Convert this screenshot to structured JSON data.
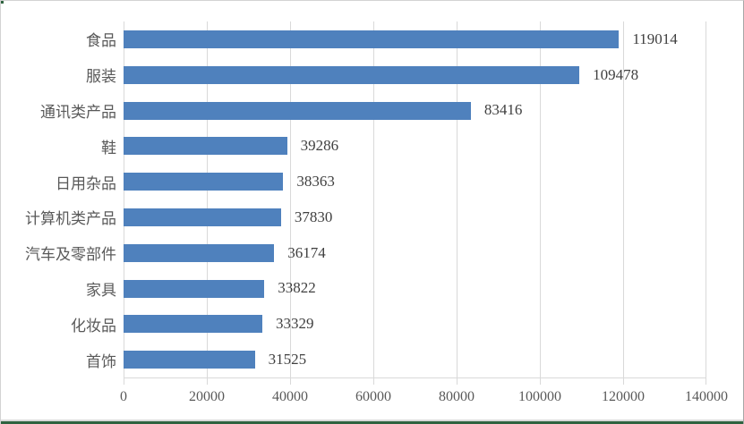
{
  "chart_data": {
    "type": "bar",
    "orientation": "horizontal",
    "title": "",
    "xlabel": "",
    "ylabel": "",
    "legend": "none",
    "grid": "vertical",
    "categories": [
      "食品",
      "服装",
      "通讯类产品",
      "鞋",
      "日用杂品",
      "计算机类产品",
      "汽车及零部件",
      "家具",
      "化妆品",
      "首饰"
    ],
    "values": [
      119014,
      109478,
      83416,
      39286,
      38363,
      37830,
      36174,
      33822,
      33329,
      31525
    ],
    "data_labels": [
      "119014",
      "109478",
      "83416",
      "39286",
      "38363",
      "37830",
      "36174",
      "33822",
      "33329",
      "31525"
    ],
    "xlim": [
      0,
      140000
    ],
    "x_ticks": [
      0,
      20000,
      40000,
      60000,
      80000,
      100000,
      120000,
      140000
    ],
    "x_tick_labels": [
      "0",
      "20000",
      "40000",
      "60000",
      "80000",
      "100000",
      "120000",
      "140000"
    ],
    "colors": {
      "bar": "#4f81bd",
      "gridline": "#d9d9d9",
      "axis_line": "#d9d9d9",
      "tick_mark": "#d9d9d9",
      "category_label": "#595959",
      "x_tick_label": "#595959",
      "data_label": "#3f3f3f",
      "background": "#ffffff",
      "frame_gray": "#d9d9d9",
      "frame_green": "#2f6340"
    }
  }
}
